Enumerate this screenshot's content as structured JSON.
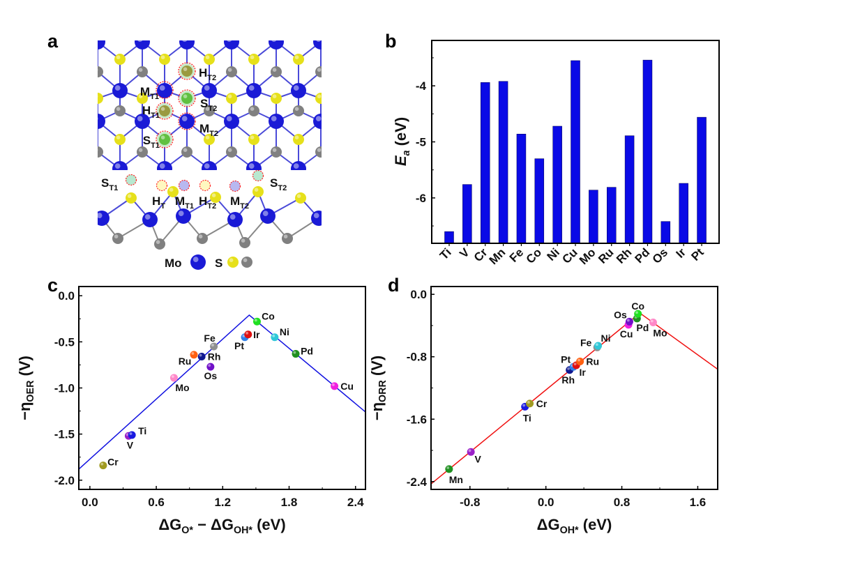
{
  "panels": {
    "a": "a",
    "b": "b",
    "c": "c",
    "d": "d"
  },
  "structure": {
    "top_labels": [
      {
        "main": "H",
        "sub": "T2"
      },
      {
        "main": "M",
        "sub": "T1"
      },
      {
        "main": "S",
        "sub": "T2"
      },
      {
        "main": "H",
        "sub": "T1"
      },
      {
        "main": "M",
        "sub": "T2"
      },
      {
        "main": "S",
        "sub": "T1"
      }
    ],
    "side_labels": [
      {
        "main": "S",
        "sub": "T1"
      },
      {
        "main": "H",
        "sub": "T"
      },
      {
        "main": "M",
        "sub": "T1"
      },
      {
        "main": "H",
        "sub": "T2"
      },
      {
        "main": "M",
        "sub": "T2"
      },
      {
        "main": "S",
        "sub": "T2"
      }
    ],
    "legend": {
      "mo": "Mo",
      "s": "S"
    },
    "colors": {
      "mo": "#1a1ad6",
      "s_top": "#e6e01a",
      "s_bottom": "#808080",
      "site_ring": "#ff2020"
    }
  },
  "chart_data": [
    {
      "id": "b",
      "type": "bar",
      "categories": [
        "Ti",
        "V",
        "Cr",
        "Mn",
        "Fe",
        "Co",
        "Ni",
        "Cu",
        "Mo",
        "Ru",
        "Rh",
        "Pd",
        "Os",
        "Ir",
        "Pt"
      ],
      "values": [
        -6.6,
        -5.76,
        -3.94,
        -3.92,
        -4.86,
        -5.3,
        -4.72,
        -3.55,
        -5.86,
        -5.81,
        -4.89,
        -3.54,
        -6.42,
        -5.74,
        -4.56
      ],
      "ylabel": {
        "main": "E",
        "sub": "a",
        "unit": " (eV)"
      },
      "ylim": [
        -6.81,
        -3.19
      ],
      "yticks": [
        "-4",
        "-5",
        "-6"
      ],
      "bar_color": "#0a0ae6",
      "grid": false
    },
    {
      "id": "c",
      "type": "scatter",
      "xlabel": [
        {
          "t": "ΔG"
        },
        {
          "t": "O*",
          "sub": true
        },
        {
          "t": " − ΔG"
        },
        {
          "t": "OH*",
          "sub": true
        },
        {
          "t": " (eV)"
        }
      ],
      "ylabel": [
        {
          "t": "−η"
        },
        {
          "t": "OER",
          "sub": true
        },
        {
          "t": " (V)"
        }
      ],
      "xlim": [
        -0.1,
        2.49
      ],
      "ylim": [
        -2.1,
        0.1
      ],
      "xticks": [
        "0.0",
        "0.6",
        "1.2",
        "1.8",
        "2.4"
      ],
      "yticks": [
        "0.0",
        "-0.5",
        "-1.0",
        "-1.5",
        "-2.0"
      ],
      "line_color": "#1010e0",
      "volcano": [
        [
          -0.1,
          -1.88
        ],
        [
          1.44,
          -0.21
        ],
        [
          2.49,
          -1.26
        ]
      ],
      "points": [
        {
          "name": "Cr",
          "x": 0.12,
          "y": -1.84,
          "color": "#a09a20"
        },
        {
          "name": "V",
          "x": 0.35,
          "y": -1.52,
          "color": "#9a20c8"
        },
        {
          "name": "Ti",
          "x": 0.38,
          "y": -1.51,
          "color": "#1a1ae0"
        },
        {
          "name": "Mo",
          "x": 0.76,
          "y": -0.89,
          "color": "#ff88c8"
        },
        {
          "name": "Ru",
          "x": 0.94,
          "y": -0.64,
          "color": "#ff6010"
        },
        {
          "name": "Rh",
          "x": 1.01,
          "y": -0.66,
          "color": "#101890"
        },
        {
          "name": "Os",
          "x": 1.09,
          "y": -0.77,
          "color": "#7010c8"
        },
        {
          "name": "Fe",
          "x": 1.12,
          "y": -0.55,
          "color": "#909090"
        },
        {
          "name": "Pt",
          "x": 1.4,
          "y": -0.45,
          "color": "#3080e8"
        },
        {
          "name": "Ir",
          "x": 1.43,
          "y": -0.42,
          "color": "#e01010"
        },
        {
          "name": "Co",
          "x": 1.51,
          "y": -0.28,
          "color": "#20e020"
        },
        {
          "name": "Ni",
          "x": 1.67,
          "y": -0.45,
          "color": "#30c8d8"
        },
        {
          "name": "Pd",
          "x": 1.86,
          "y": -0.63,
          "color": "#209020"
        },
        {
          "name": "Cu",
          "x": 2.21,
          "y": -0.98,
          "color": "#f020e0"
        }
      ]
    },
    {
      "id": "d",
      "type": "scatter",
      "xlabel": [
        {
          "t": "ΔG"
        },
        {
          "t": "OH*",
          "sub": true
        },
        {
          "t": " (eV)"
        }
      ],
      "ylabel": [
        {
          "t": "−η"
        },
        {
          "t": "ORR",
          "sub": true
        },
        {
          "t": " (V)"
        }
      ],
      "xlim": [
        -1.21,
        1.81
      ],
      "ylim": [
        -2.5,
        0.1
      ],
      "xticks": [
        "-0.8",
        "0.0",
        "0.8",
        "1.6"
      ],
      "yticks": [
        "0.0",
        "-0.8",
        "-1.6",
        "-2.4"
      ],
      "line_color": "#f01010",
      "volcano": [
        [
          -1.21,
          -2.43
        ],
        [
          0.99,
          -0.24
        ],
        [
          1.81,
          -0.96
        ]
      ],
      "points": [
        {
          "name": "Mn",
          "x": -1.02,
          "y": -2.24,
          "color": "#209020"
        },
        {
          "name": "V",
          "x": -0.79,
          "y": -2.02,
          "color": "#9a20c8"
        },
        {
          "name": "Ti",
          "x": -0.22,
          "y": -1.44,
          "color": "#1a1ae0"
        },
        {
          "name": "Cr",
          "x": -0.17,
          "y": -1.4,
          "color": "#a09a20"
        },
        {
          "name": "Rh",
          "x": 0.25,
          "y": -0.97,
          "color": "#101890"
        },
        {
          "name": "Pt",
          "x": 0.29,
          "y": -0.93,
          "color": "#3080e8"
        },
        {
          "name": "Ir",
          "x": 0.32,
          "y": -0.91,
          "color": "#e01010"
        },
        {
          "name": "Ru",
          "x": 0.36,
          "y": -0.86,
          "color": "#ff6010"
        },
        {
          "name": "Fe",
          "x": 0.54,
          "y": -0.68,
          "color": "#909090"
        },
        {
          "name": "Ni",
          "x": 0.55,
          "y": -0.66,
          "color": "#30c8d8"
        },
        {
          "name": "Cu",
          "x": 0.87,
          "y": -0.39,
          "color": "#f020e0"
        },
        {
          "name": "Os",
          "x": 0.88,
          "y": -0.35,
          "color": "#7010c8"
        },
        {
          "name": "Pd",
          "x": 0.96,
          "y": -0.31,
          "color": "#209020"
        },
        {
          "name": "Co",
          "x": 0.97,
          "y": -0.25,
          "color": "#20e020"
        },
        {
          "name": "Mo",
          "x": 1.13,
          "y": -0.36,
          "color": "#ff88c8"
        }
      ]
    }
  ]
}
